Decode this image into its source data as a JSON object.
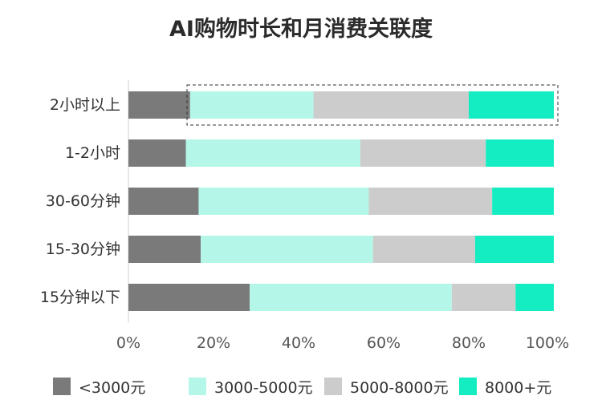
{
  "chart_data": {
    "type": "bar",
    "orientation": "horizontal",
    "stacked": true,
    "title": "AI购物时长和月消费关联度",
    "categories": [
      "2小时以上",
      "1-2小时",
      "30-60分钟",
      "15-30分钟",
      "15分钟以下"
    ],
    "series": [
      {
        "name": "<3000元",
        "color": "#7a7a7a",
        "values": [
          14.5,
          13.5,
          16.5,
          17,
          28.5
        ]
      },
      {
        "name": "3000-5000元",
        "color": "#b4f7e8",
        "values": [
          29,
          41,
          40,
          40.5,
          47.5
        ]
      },
      {
        "name": "5000-8000元",
        "color": "#cccccc",
        "values": [
          36.5,
          29.5,
          29,
          24,
          15
        ]
      },
      {
        "name": "8000+元",
        "color": "#14edc1",
        "values": [
          20,
          16,
          14.5,
          18.5,
          9
        ]
      }
    ],
    "xlim": [
      0,
      100
    ],
    "x_ticks": [
      "0%",
      "20%",
      "40%",
      "60%",
      "80%",
      "100%"
    ],
    "grid": false,
    "legend_position": "bottom",
    "highlighted_category": "2小时以上"
  }
}
